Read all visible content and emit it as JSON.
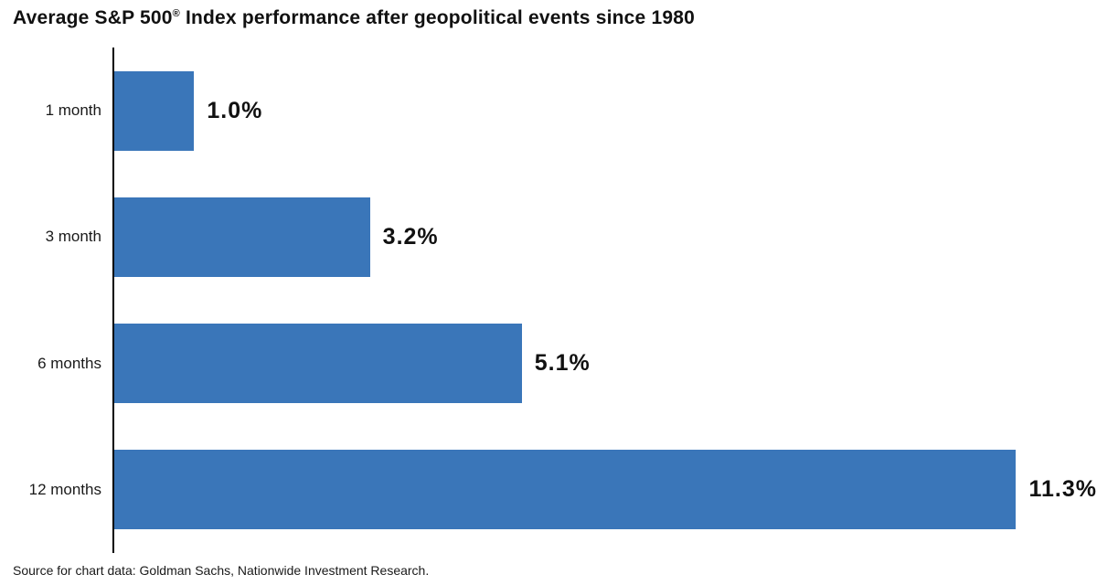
{
  "title": {
    "pre": "Average S&P 500",
    "reg_mark": "®",
    "post": " Index performance after geopolitical events since 1980",
    "full": "Average S&P 500® Index performance after geopolitical events since 1980"
  },
  "source": "Source for chart data: Goldman Sachs, Nationwide Investment Research.",
  "colors": {
    "bar": "#3a76b9",
    "axis": "#000000",
    "text": "#1a1a1a"
  },
  "chart_data": {
    "type": "bar",
    "orientation": "horizontal",
    "title": "Average S&P 500® Index performance after geopolitical events since 1980",
    "categories": [
      "1 month",
      "3 month",
      "6 months",
      "12 months"
    ],
    "values": [
      1.0,
      3.2,
      5.1,
      11.3
    ],
    "value_labels": [
      "1.0%",
      "3.2%",
      "5.1%",
      "11.3%"
    ],
    "xlabel": "",
    "ylabel": "",
    "xlim": [
      0,
      12.3
    ],
    "grid": false,
    "legend": false,
    "bar_color": "#3a76b9",
    "source": "Source for chart data: Goldman Sachs, Nationwide Investment Research."
  }
}
